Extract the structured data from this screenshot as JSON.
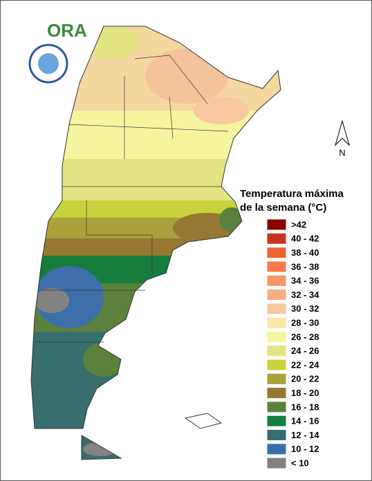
{
  "logo": {
    "text": "ORA"
  },
  "north": "N",
  "legend": {
    "title": [
      "Temperatura máxima",
      "de la semana (°C)"
    ],
    "items": [
      {
        "label": ">42",
        "color": "#8b0000"
      },
      {
        "label": "40 - 42",
        "color": "#c8321e"
      },
      {
        "label": "38 - 40",
        "color": "#f06432"
      },
      {
        "label": "36 - 38",
        "color": "#f57a4b"
      },
      {
        "label": "34 - 36",
        "color": "#f59664"
      },
      {
        "label": "32 - 34",
        "color": "#f5ad84"
      },
      {
        "label": "30 - 32",
        "color": "#fac8a0"
      },
      {
        "label": "28 - 30",
        "color": "#fae6a5"
      },
      {
        "label": "26 - 28",
        "color": "#f5f5a0"
      },
      {
        "label": "24 - 26",
        "color": "#e1e682"
      },
      {
        "label": "22 - 24",
        "color": "#c8d23c"
      },
      {
        "label": "20 - 22",
        "color": "#aaa03c"
      },
      {
        "label": "18 - 20",
        "color": "#967832"
      },
      {
        "label": "16 - 18",
        "color": "#5a823c"
      },
      {
        "label": "14 - 16",
        "color": "#147d3c"
      },
      {
        "label": "12 - 14",
        "color": "#376e6e"
      },
      {
        "label": "10 - 12",
        "color": "#3c6eaa"
      },
      {
        "label": "< 10",
        "color": "#828282"
      }
    ]
  }
}
